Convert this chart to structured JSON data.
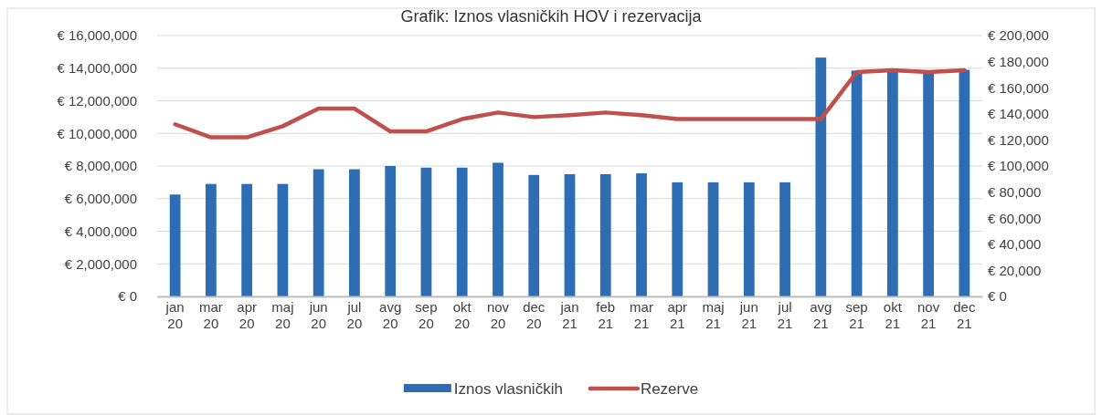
{
  "chart_data": {
    "type": "bar",
    "title": "Grafik: Iznos vlasničkih HOV i rezervacija",
    "categories": [
      "jan 20",
      "mar 20",
      "apr 20",
      "maj 20",
      "jun 20",
      "jul 20",
      "avg 20",
      "sep 20",
      "okt 20",
      "nov 20",
      "dec 20",
      "jan 21",
      "feb 21",
      "mar 21",
      "apr 21",
      "maj 21",
      "jun 21",
      "jul 21",
      "avg 21",
      "sep 21",
      "okt 21",
      "nov 21",
      "dec 21"
    ],
    "series": [
      {
        "name": "Iznos vlasničkih",
        "color": "#2e6db4",
        "values": [
          6250000,
          6900000,
          6900000,
          6900000,
          7800000,
          7800000,
          8000000,
          7900000,
          7900000,
          8200000,
          7450000,
          7500000,
          7500000,
          7550000,
          7000000,
          7000000,
          7000000,
          7000000,
          14650000,
          13850000,
          13850000,
          13800000,
          13900000
        ]
      },
      {
        "name": "Rezerve",
        "type": "line",
        "axis": "y2",
        "color": "#c0504d",
        "values": [
          132000,
          122000,
          122000,
          130500,
          144000,
          144000,
          126500,
          126500,
          136000,
          141000,
          137500,
          139000,
          141000,
          139000,
          136000,
          136000,
          136000,
          136000,
          136000,
          172000,
          173500,
          172000,
          173500
        ]
      }
    ],
    "ylim": [
      0,
      16000000
    ],
    "yticks": [
      {
        "value": 0,
        "label": "€ 0"
      },
      {
        "value": 2000000,
        "label": "€ 2,000,000"
      },
      {
        "value": 4000000,
        "label": "€ 4,000,000"
      },
      {
        "value": 6000000,
        "label": "€ 6,000,000"
      },
      {
        "value": 8000000,
        "label": "€ 8,000,000"
      },
      {
        "value": 10000000,
        "label": "€ 10,000,000"
      },
      {
        "value": 12000000,
        "label": "€ 12,000,000"
      },
      {
        "value": 14000000,
        "label": "€ 14,000,000"
      },
      {
        "value": 16000000,
        "label": "€ 16,000,000"
      }
    ],
    "y2lim": [
      0,
      200000
    ],
    "y2ticks": [
      {
        "value": 0,
        "label": "€ 0"
      },
      {
        "value": 20000,
        "label": "€ 20,000"
      },
      {
        "value": 40000,
        "label": "€ 40,000"
      },
      {
        "value": 60000,
        "label": "€ 60,000"
      },
      {
        "value": 80000,
        "label": "€ 80,000"
      },
      {
        "value": 100000,
        "label": "€ 100,000"
      },
      {
        "value": 120000,
        "label": "€ 120,000"
      },
      {
        "value": 140000,
        "label": "€ 140,000"
      },
      {
        "value": 160000,
        "label": "€ 160,000"
      },
      {
        "value": 180000,
        "label": "€ 180,000"
      },
      {
        "value": 200000,
        "label": "€ 200,000"
      }
    ],
    "grid": "y",
    "legend": "bottom"
  }
}
